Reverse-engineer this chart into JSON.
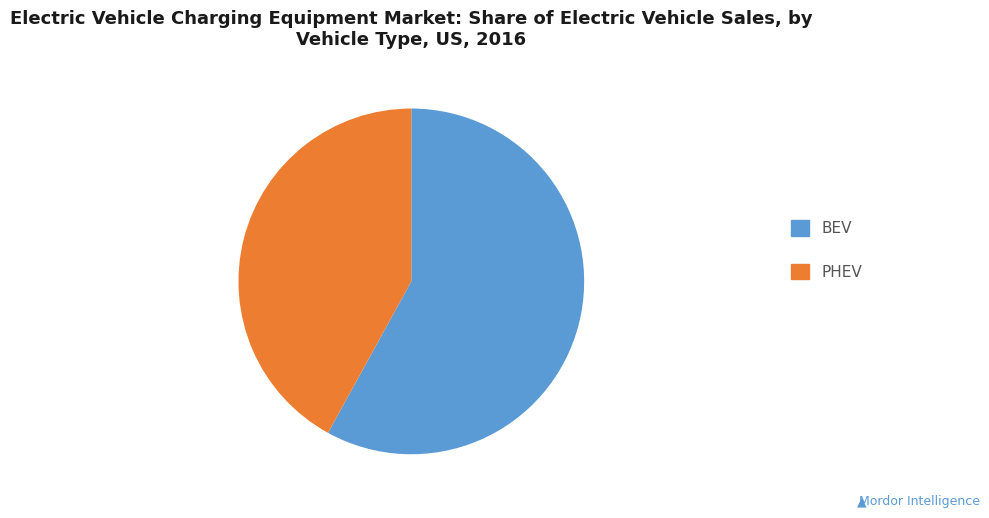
{
  "title": "Electric Vehicle Charging Equipment Market: Share of Electric Vehicle Sales, by\nVehicle Type, US, 2016",
  "slices": [
    58,
    42
  ],
  "labels": [
    "BEV",
    "PHEV"
  ],
  "colors": [
    "#5B9BD5",
    "#ED7D31"
  ],
  "startangle": 90,
  "background_color": "#FFFFFF",
  "title_fontsize": 13,
  "legend_fontsize": 11,
  "legend_labels": [
    "BEV",
    "PHEV"
  ],
  "watermark": "Mordor Intelligence",
  "watermark_color": "#5B9BD5",
  "title_color": "#1a1a1a",
  "legend_text_color": "#555555"
}
